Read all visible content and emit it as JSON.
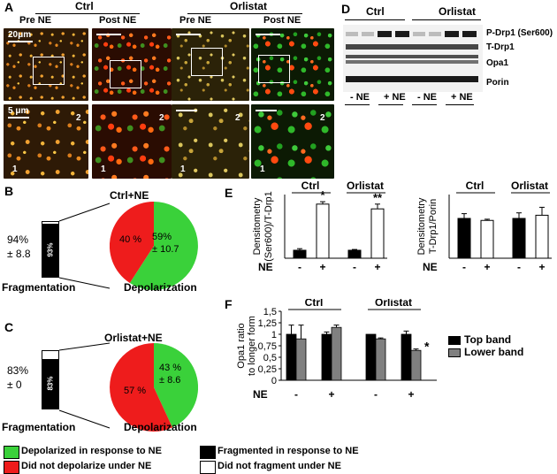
{
  "panelA": {
    "letter": "A",
    "group_ctrl": "Ctrl",
    "group_orlistat": "Orlistat",
    "col_labels": [
      "Pre NE",
      "Post NE",
      "Pre NE",
      "Post NE"
    ],
    "scale_top": "20μm",
    "scale_bottom": "5 μm",
    "region_1": "1",
    "region_2": "2"
  },
  "panelB": {
    "letter": "B",
    "title": "Ctrl+NE",
    "percent_left": "94%",
    "sd_left": "± 8.8",
    "bar_label": "93%",
    "pie_red": "40 %",
    "pie_green_pct": "59%",
    "pie_green_sd": "± 10.7",
    "fragmentation": "Fragmentation",
    "depolarization": "Depolarization"
  },
  "panelC": {
    "letter": "C",
    "title": "Orlistat+NE",
    "percent_left": "83%",
    "sd_left": "± 0",
    "bar_label": "83%",
    "pie_red": "57 %",
    "pie_green_pct": "43 %",
    "pie_green_sd": "± 8.6",
    "fragmentation": "Fragmentation",
    "depolarization": "Depolarization"
  },
  "panelD": {
    "letter": "D",
    "group_ctrl": "Ctrl",
    "group_orlistat": "Orlistat",
    "bands": [
      "P-Drp1 (Ser600)",
      "T-Drp1",
      "Opa1",
      "Porin"
    ],
    "conditions": [
      "- NE",
      "+ NE",
      "- NE",
      "+ NE"
    ]
  },
  "panelE": {
    "letter": "E",
    "ne_label": "NE",
    "chart_data": [
      {
        "type": "bar",
        "ylabel": "Densitometry (Ser600)/T-Drp1",
        "groups": [
          "Ctrl",
          "Orlistat"
        ],
        "categories": [
          "-",
          "+",
          "-",
          "+"
        ],
        "values": [
          1.0,
          6.8,
          1.0,
          6.2
        ],
        "errors": [
          0.2,
          0.3,
          0.1,
          0.6
        ],
        "significance": [
          "",
          "*",
          "",
          "**"
        ],
        "ylim": [
          0,
          8
        ]
      },
      {
        "type": "bar",
        "ylabel": "Densitometry T-Drp1/Porin",
        "groups": [
          "Ctrl",
          "Orlistat"
        ],
        "categories": [
          "-",
          "+",
          "-",
          "+"
        ],
        "values": [
          1.0,
          0.95,
          1.0,
          1.08
        ],
        "errors": [
          0.12,
          0.03,
          0.14,
          0.2
        ],
        "significance": [
          "",
          "",
          "",
          ""
        ],
        "ylim": [
          0,
          1.6
        ]
      }
    ]
  },
  "panelF": {
    "letter": "F",
    "ne_label": "NE",
    "chart_data": {
      "type": "bar",
      "ylabel": "Opa1 ratio to longer form",
      "groups": [
        "Ctrl",
        "Orlistat"
      ],
      "categories": [
        "-",
        "+",
        "-",
        "+"
      ],
      "series": [
        {
          "name": "Top band",
          "values": [
            1.0,
            1.0,
            1.0,
            1.0
          ],
          "errors": [
            0.2,
            0.05,
            0.0,
            0.07
          ],
          "color": "#000000"
        },
        {
          "name": "Lower band",
          "values": [
            0.9,
            1.15,
            0.9,
            0.65
          ],
          "errors": [
            0.3,
            0.05,
            0.02,
            0.03
          ],
          "color": "#808080"
        }
      ],
      "significance": [
        "",
        "",
        "",
        "*"
      ],
      "yticks": [
        "0",
        "0,25",
        "0,5",
        "0,75",
        "1",
        "1,25",
        "1,5"
      ],
      "ylim": [
        0,
        1.5
      ]
    }
  },
  "legend": {
    "green": "Depolarized in response to NE",
    "red": "Did not depolarize under NE",
    "black": "Fragmented in response to NE",
    "white": "Did not fragment under NE",
    "colors": {
      "green": "#3ad13a",
      "red": "#ee1c1c",
      "black": "#000000",
      "white": "#ffffff"
    }
  }
}
